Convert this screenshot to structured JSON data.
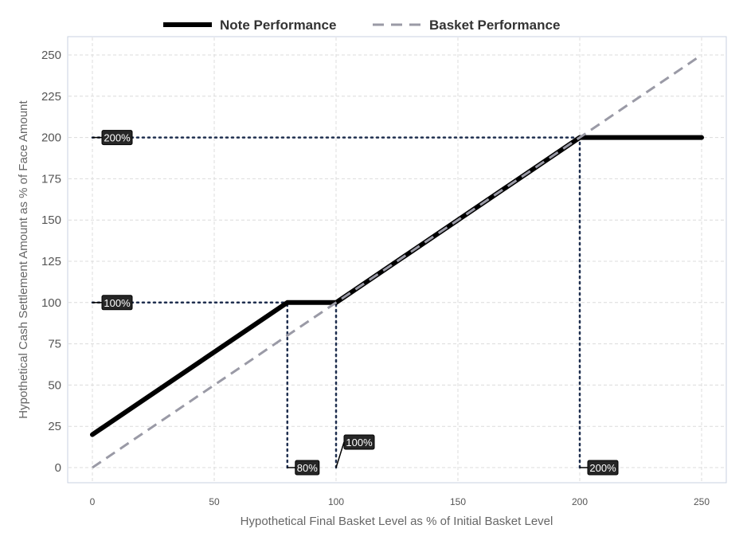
{
  "chart_data": {
    "type": "line",
    "xlabel": "Hypothetical Final Basket Level as % of Initial Basket Level",
    "ylabel": "Hypothetical Cash Settlement Amount as % of Face Amount",
    "xlim": [
      0,
      250
    ],
    "ylim": [
      0,
      250
    ],
    "x_ticks": [
      0,
      50,
      100,
      150,
      200,
      250
    ],
    "y_ticks": [
      0,
      25,
      50,
      75,
      100,
      125,
      150,
      175,
      200,
      225,
      250
    ],
    "grid": true,
    "legend_position": "top",
    "series": [
      {
        "name": "Note Performance",
        "style": "solid",
        "color": "#000000",
        "x": [
          0,
          80,
          100,
          200,
          250
        ],
        "y": [
          20,
          100,
          100,
          200,
          200
        ]
      },
      {
        "name": "Basket Performance",
        "style": "dashed",
        "color": "#9a9aa6",
        "x": [
          0,
          250
        ],
        "y": [
          0,
          250
        ]
      }
    ],
    "reference_lines": [
      {
        "from": [
          0,
          200
        ],
        "to": [
          200,
          200
        ],
        "color": "#1f2f4f"
      },
      {
        "from": [
          0,
          100
        ],
        "to": [
          100,
          100
        ],
        "color": "#1f2f4f"
      },
      {
        "from": [
          80,
          0
        ],
        "to": [
          80,
          100
        ],
        "color": "#1f2f4f"
      },
      {
        "from": [
          100,
          0
        ],
        "to": [
          100,
          100
        ],
        "color": "#1f2f4f"
      },
      {
        "from": [
          200,
          0
        ],
        "to": [
          200,
          200
        ],
        "color": "#1f2f4f"
      }
    ],
    "annotations": [
      {
        "text": "200%",
        "x": 0,
        "y": 200
      },
      {
        "text": "100%",
        "x": 0,
        "y": 100
      },
      {
        "text": "80%",
        "x": 80,
        "y": 0
      },
      {
        "text": "100%",
        "x": 100,
        "y": 0
      },
      {
        "text": "200%",
        "x": 200,
        "y": 0
      }
    ]
  }
}
